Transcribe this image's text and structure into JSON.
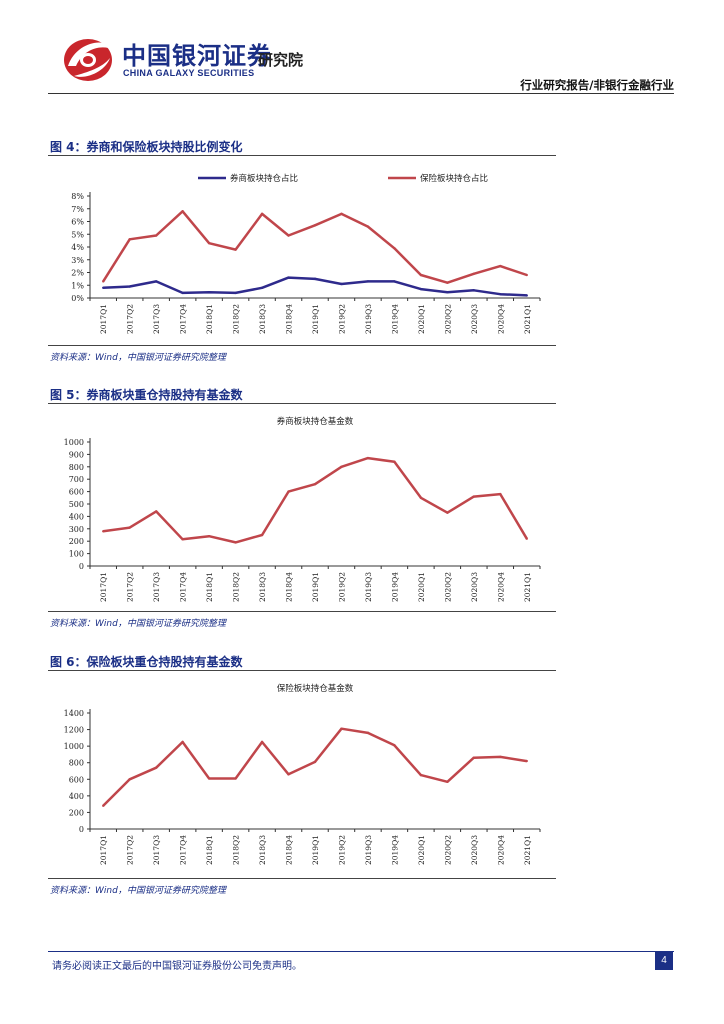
{
  "header": {
    "logo_cn": "中国银河证券",
    "logo_en": "CHINA GALAXY SECURITIES",
    "institute": "研究院",
    "report_type": "行业研究报告/非银行金融行业"
  },
  "figures": [
    {
      "title": "图 4：券商和保险板块持股比例变化",
      "source": "资料来源：Wind，中国银河证券研究院整理"
    },
    {
      "title": "图 5：券商板块重仓持股持有基金数",
      "source": "资料来源：Wind，中国银河证券研究院整理"
    },
    {
      "title": "图 6：保险板块重仓持股持有基金数",
      "source": "资料来源：Wind，中国银河证券研究院整理"
    }
  ],
  "chart_data": [
    {
      "type": "line",
      "title": "",
      "categories": [
        "2017Q1",
        "2017Q2",
        "2017Q3",
        "2017Q4",
        "2018Q1",
        "2018Q2",
        "2018Q3",
        "2018Q4",
        "2019Q1",
        "2019Q2",
        "2019Q3",
        "2019Q4",
        "2020Q1",
        "2020Q2",
        "2020Q3",
        "2020Q4",
        "2021Q1"
      ],
      "series": [
        {
          "name": "券商板块持仓占比",
          "color": "#2e2a8c",
          "values": [
            0.8,
            0.9,
            1.3,
            0.4,
            0.45,
            0.4,
            0.8,
            1.6,
            1.5,
            1.1,
            1.3,
            1.3,
            0.7,
            0.45,
            0.6,
            0.3,
            0.2
          ]
        },
        {
          "name": "保险板块持仓占比",
          "color": "#c0464b",
          "values": [
            1.3,
            4.6,
            4.9,
            6.8,
            4.3,
            3.8,
            6.6,
            4.9,
            5.7,
            6.6,
            5.6,
            3.9,
            1.8,
            1.2,
            1.9,
            2.5,
            1.8
          ]
        }
      ],
      "yticks": [
        "0%",
        "1%",
        "2%",
        "3%",
        "4%",
        "5%",
        "6%",
        "7%",
        "8%"
      ],
      "ylim": [
        0,
        8
      ],
      "legend": "top"
    },
    {
      "type": "line",
      "title": "券商板块持仓基金数",
      "categories": [
        "2017Q1",
        "2017Q2",
        "2017Q3",
        "2017Q4",
        "2018Q1",
        "2018Q2",
        "2018Q3",
        "2018Q4",
        "2019Q1",
        "2019Q2",
        "2019Q3",
        "2019Q4",
        "2020Q1",
        "2020Q2",
        "2020Q3",
        "2020Q4",
        "2021Q1"
      ],
      "series": [
        {
          "color": "#c0464b",
          "values": [
            280,
            310,
            440,
            215,
            240,
            190,
            250,
            600,
            660,
            800,
            870,
            840,
            550,
            430,
            560,
            580,
            220
          ]
        }
      ],
      "yticks": [
        "0",
        "100",
        "200",
        "300",
        "400",
        "500",
        "600",
        "700",
        "800",
        "900",
        "1000"
      ],
      "ylim": [
        0,
        1000
      ]
    },
    {
      "type": "line",
      "title": "保险板块持仓基金数",
      "categories": [
        "2017Q1",
        "2017Q2",
        "2017Q3",
        "2017Q4",
        "2018Q1",
        "2018Q2",
        "2018Q3",
        "2018Q4",
        "2019Q1",
        "2019Q2",
        "2019Q3",
        "2019Q4",
        "2020Q1",
        "2020Q2",
        "2020Q3",
        "2020Q4",
        "2021Q1"
      ],
      "series": [
        {
          "color": "#c0464b",
          "values": [
            280,
            600,
            740,
            1050,
            610,
            610,
            1050,
            660,
            810,
            1210,
            1160,
            1010,
            650,
            570,
            860,
            870,
            820
          ]
        }
      ],
      "yticks": [
        "0",
        "200",
        "400",
        "600",
        "800",
        "1000",
        "1200",
        "1400"
      ],
      "ylim": [
        0,
        1400
      ]
    }
  ],
  "footer": {
    "disclaimer": "请务必阅读正文最后的中国银河证券股份公司免责声明。",
    "page_number": "4"
  }
}
